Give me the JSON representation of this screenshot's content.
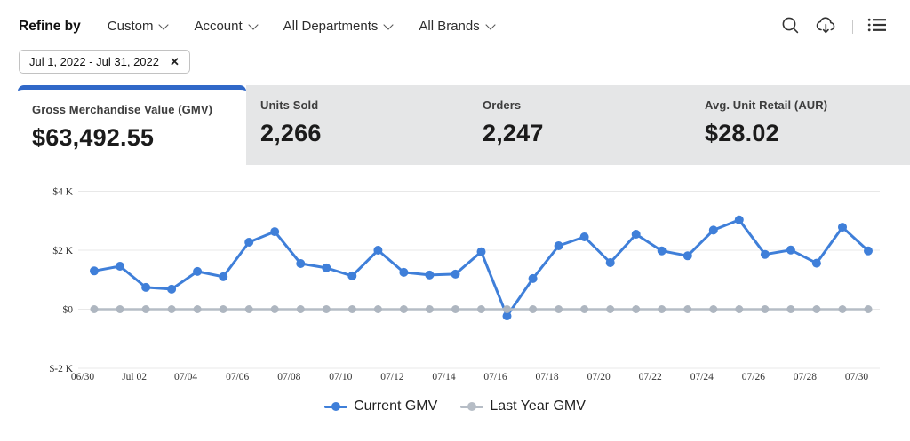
{
  "header": {
    "refine_by_label": "Refine by",
    "dropdowns": [
      {
        "label": "Custom"
      },
      {
        "label": "Account"
      },
      {
        "label": "All Departments"
      },
      {
        "label": "All Brands"
      }
    ],
    "icons": {
      "search": "search-icon",
      "download": "cloud-download-icon",
      "menu": "list-menu-icon"
    }
  },
  "filters": {
    "date_range_chip": {
      "label": "Jul 1, 2022 - Jul 31, 2022",
      "close_glyph": "✕"
    }
  },
  "kpis": [
    {
      "label": "Gross Merchandise Value (GMV)",
      "value": "$63,492.55",
      "active": true
    },
    {
      "label": "Units Sold",
      "value": "2,266",
      "active": false
    },
    {
      "label": "Orders",
      "value": "2,247",
      "active": false
    },
    {
      "label": "Avg. Unit Retail (AUR)",
      "value": "$28.02",
      "active": false
    }
  ],
  "chart_data": {
    "type": "line",
    "x": [
      "06/30",
      "07/01",
      "07/02",
      "07/03",
      "07/04",
      "07/05",
      "07/06",
      "07/07",
      "07/08",
      "07/09",
      "07/10",
      "07/11",
      "07/12",
      "07/13",
      "07/14",
      "07/15",
      "07/16",
      "07/17",
      "07/18",
      "07/19",
      "07/20",
      "07/21",
      "07/22",
      "07/23",
      "07/24",
      "07/25",
      "07/26",
      "07/27",
      "07/28",
      "07/29",
      "07/30"
    ],
    "xticklabels": [
      "06/30",
      "Jul 02",
      "07/04",
      "07/06",
      "07/08",
      "07/10",
      "07/12",
      "07/14",
      "07/16",
      "07/18",
      "07/20",
      "07/22",
      "07/24",
      "07/26",
      "07/28",
      "07/30"
    ],
    "yticks": [
      {
        "label": "$4 K",
        "value": 4000
      },
      {
        "label": "$2 K",
        "value": 2000
      },
      {
        "label": "$0",
        "value": 0
      },
      {
        "label": "$-2 K",
        "value": -2000
      }
    ],
    "ylim": [
      -2600,
      4600
    ],
    "grid": true,
    "legend_position": "bottom",
    "series": [
      {
        "name": "Current GMV",
        "color": "#3f7fd9",
        "marker_color": "#3f7fd9",
        "values": [
          1300,
          1460,
          740,
          680,
          1280,
          1100,
          2270,
          2630,
          1550,
          1400,
          1130,
          2000,
          1250,
          1160,
          1190,
          1950,
          -230,
          1040,
          2150,
          2450,
          1580,
          2540,
          1980,
          1810,
          2680,
          3030,
          1860,
          2010,
          1560,
          2780,
          1980
        ]
      },
      {
        "name": "Last Year GMV",
        "color": "#b6bdc6",
        "marker_color": "#aeb6c0",
        "values": [
          0,
          0,
          0,
          0,
          0,
          0,
          0,
          0,
          0,
          0,
          0,
          0,
          0,
          0,
          0,
          0,
          0,
          0,
          0,
          0,
          0,
          0,
          0,
          0,
          0,
          0,
          0,
          0,
          0,
          0,
          0
        ]
      }
    ]
  },
  "colors": {
    "accent_blue": "#3068c8",
    "card_gray": "#e5e6e7",
    "gridline": "#e8e8e8"
  }
}
